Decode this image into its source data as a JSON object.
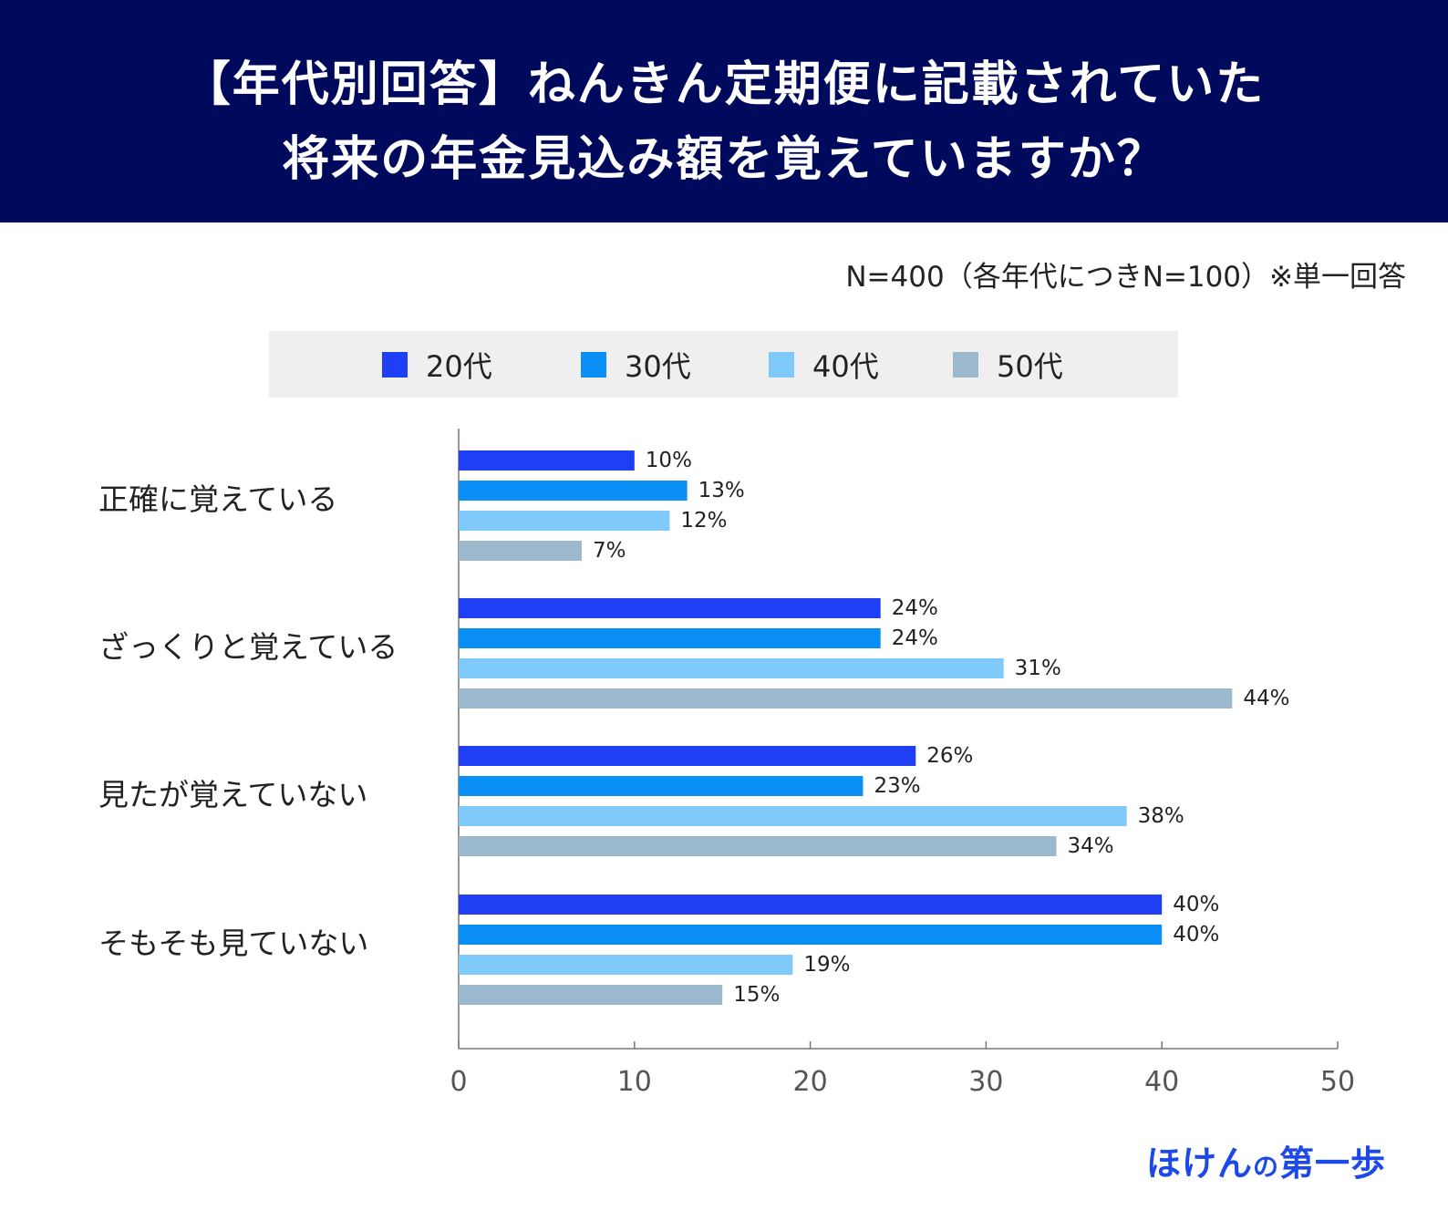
{
  "header": {
    "title_line1": "【年代別回答】ねんきん定期便に記載されていた",
    "title_line2": "将来の年金見込み額を覚えていますか？"
  },
  "note": "N=400（各年代につきN=100）※単一回答",
  "brand": {
    "main": "ほけん",
    "small": "の",
    "tail": "第一歩"
  },
  "chart_data": {
    "type": "bar",
    "orientation": "horizontal",
    "categories": [
      "正確に覚えている",
      "ざっくりと覚えている",
      "見たが覚えていない",
      "そもそも見ていない"
    ],
    "series": [
      {
        "name": "20代",
        "color": "#1f3ff5",
        "values": [
          10,
          24,
          26,
          40
        ]
      },
      {
        "name": "30代",
        "color": "#0a8ff7",
        "values": [
          13,
          24,
          23,
          40
        ]
      },
      {
        "name": "40代",
        "color": "#80c9fb",
        "values": [
          12,
          31,
          38,
          19
        ]
      },
      {
        "name": "50代",
        "color": "#9cb8cc",
        "values": [
          7,
          44,
          34,
          15
        ]
      }
    ],
    "value_suffix": "%",
    "xlim": [
      0,
      50
    ],
    "xticks": [
      0,
      10,
      20,
      30,
      40,
      50
    ],
    "legend_position": "top",
    "grid": false
  }
}
